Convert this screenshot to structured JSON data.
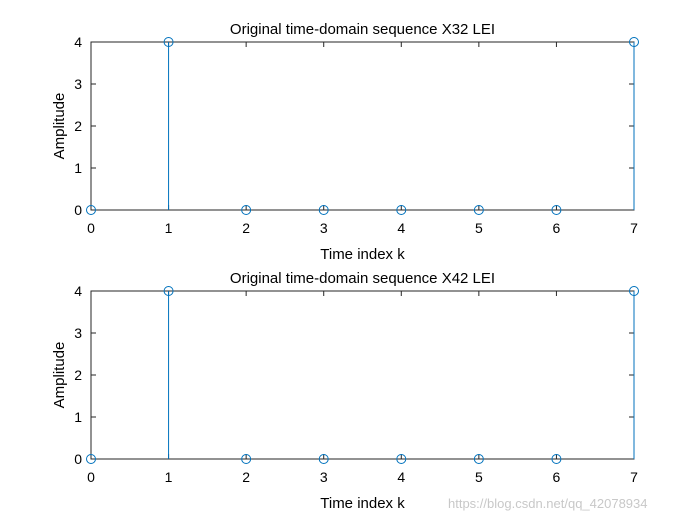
{
  "chart_data": [
    {
      "type": "stem",
      "title": "Original time-domain sequence X32 LEI",
      "xlabel": "Time index k",
      "ylabel": "Amplitude",
      "xlim": [
        0,
        7
      ],
      "ylim": [
        0,
        4
      ],
      "xticks": [
        "0",
        "1",
        "2",
        "3",
        "4",
        "5",
        "6",
        "7"
      ],
      "yticks": [
        "0",
        "1",
        "2",
        "3",
        "4"
      ],
      "x": [
        0,
        1,
        2,
        3,
        4,
        5,
        6,
        7
      ],
      "values": [
        0,
        4,
        0,
        0,
        0,
        0,
        0,
        4
      ],
      "color": "#0072BD"
    },
    {
      "type": "stem",
      "title": "Original time-domain sequence X42 LEI",
      "xlabel": "Time index k",
      "ylabel": "Amplitude",
      "xlim": [
        0,
        7
      ],
      "ylim": [
        0,
        4
      ],
      "xticks": [
        "0",
        "1",
        "2",
        "3",
        "4",
        "5",
        "6",
        "7"
      ],
      "yticks": [
        "0",
        "1",
        "2",
        "3",
        "4"
      ],
      "x": [
        0,
        1,
        2,
        3,
        4,
        5,
        6,
        7
      ],
      "values": [
        0,
        4,
        0,
        0,
        0,
        0,
        0,
        4
      ],
      "color": "#0072BD"
    }
  ],
  "watermark": "https://blog.csdn.net/qq_42078934"
}
